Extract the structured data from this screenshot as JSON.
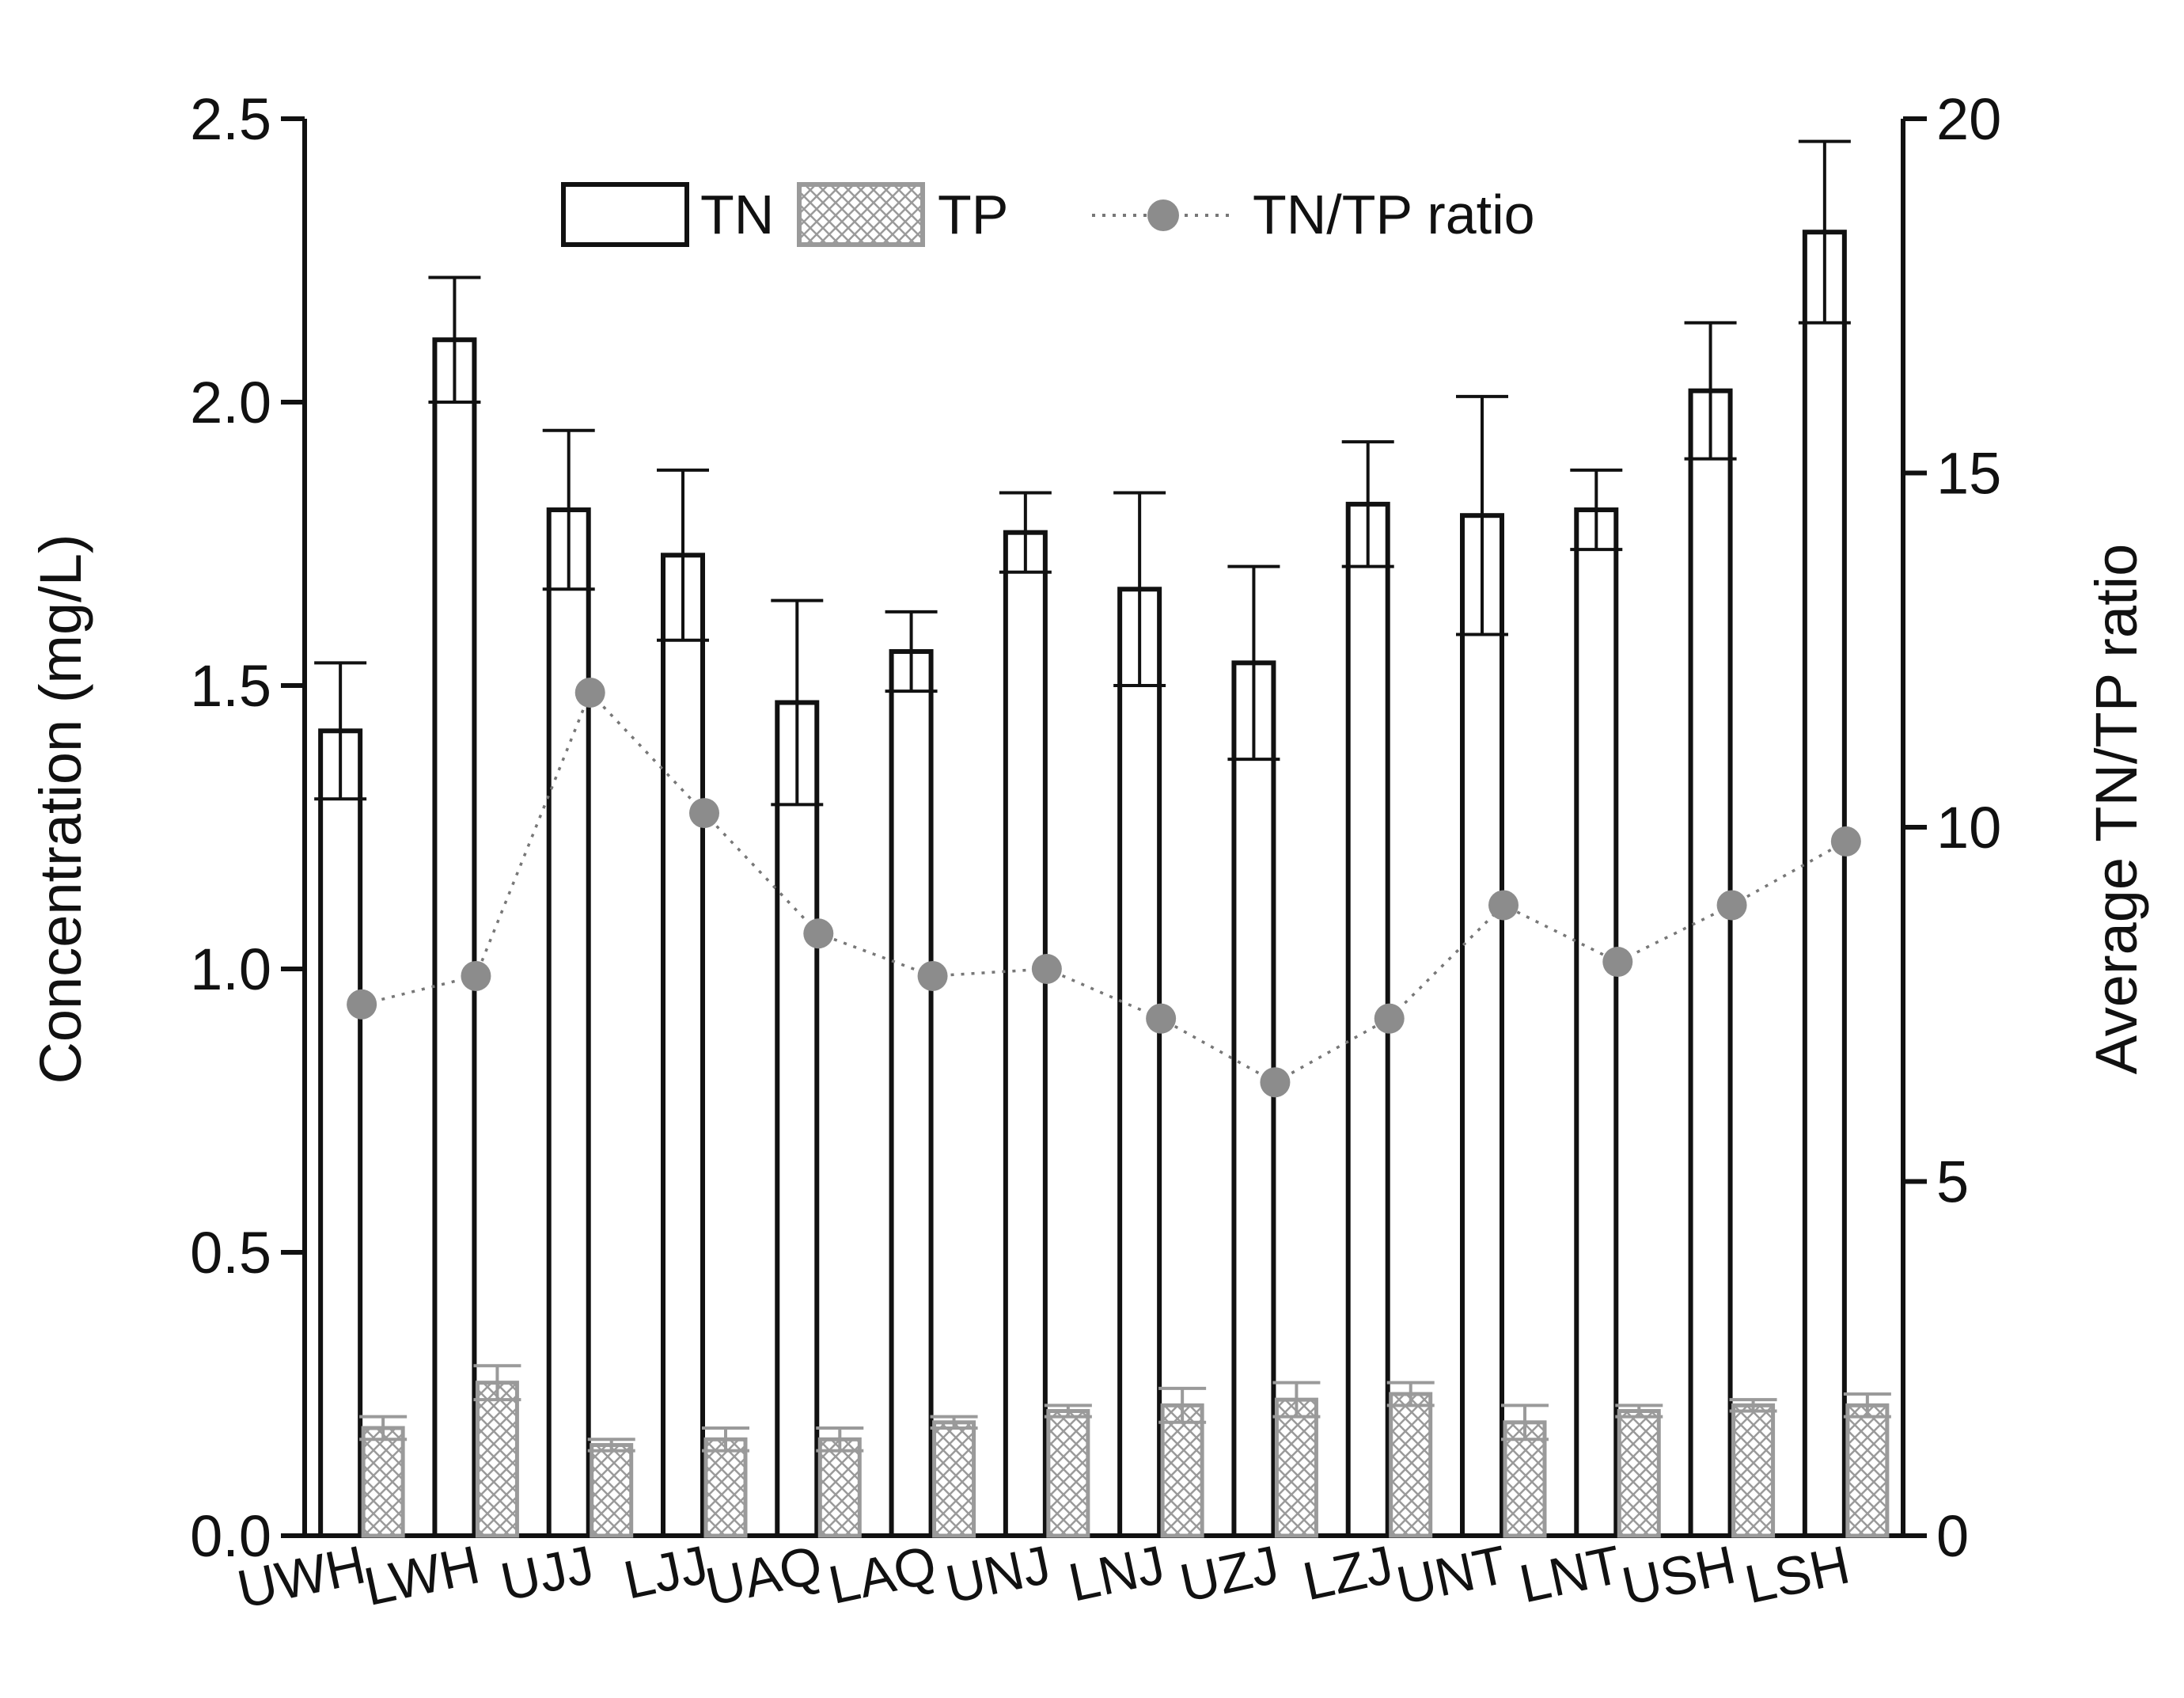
{
  "chart_data": {
    "type": "bar",
    "ylabel": "Concentration (mg/L)",
    "y2label": "Average TN/TP ratio",
    "ylim": [
      0,
      2.5
    ],
    "y2lim": [
      0,
      20
    ],
    "yticks": [
      "0.0",
      "0.5",
      "1.0",
      "1.5",
      "2.0",
      "2.5"
    ],
    "y2ticks": [
      "0",
      "5",
      "10",
      "15",
      "20"
    ],
    "categories": [
      "UWH",
      "LWH",
      "UJJ",
      "LJJ",
      "UAQ",
      "LAQ",
      "UNJ",
      "LNJ",
      "UZJ",
      "LZJ",
      "UNT",
      "LNT",
      "USH",
      "LSH"
    ],
    "legend_position": "top",
    "legend": {
      "tn": "TN",
      "tp": "TP",
      "ratio": "TN/TP ratio"
    },
    "grid": false,
    "series": [
      {
        "name": "TN",
        "axis": "left",
        "style": "open",
        "values": [
          1.42,
          2.11,
          1.81,
          1.73,
          1.47,
          1.56,
          1.77,
          1.67,
          1.54,
          1.82,
          1.8,
          1.81,
          2.02,
          2.3
        ],
        "errors": [
          0.12,
          0.11,
          0.14,
          0.15,
          0.18,
          0.07,
          0.07,
          0.17,
          0.17,
          0.11,
          0.21,
          0.07,
          0.12,
          0.16
        ]
      },
      {
        "name": "TP",
        "axis": "left",
        "style": "crosshatch",
        "values": [
          0.19,
          0.27,
          0.16,
          0.17,
          0.17,
          0.2,
          0.22,
          0.23,
          0.24,
          0.25,
          0.2,
          0.22,
          0.23,
          0.23
        ],
        "errors": [
          0.02,
          0.03,
          0.01,
          0.02,
          0.02,
          0.01,
          0.01,
          0.03,
          0.03,
          0.02,
          0.03,
          0.01,
          0.01,
          0.02
        ]
      },
      {
        "name": "TN/TP ratio",
        "axis": "right",
        "style": "dotted-line-markers",
        "values": [
          7.5,
          7.9,
          11.9,
          10.2,
          8.5,
          7.9,
          8.0,
          7.3,
          6.4,
          7.3,
          8.9,
          8.1,
          8.9,
          9.8
        ]
      }
    ],
    "colors": {
      "axis": "#111111",
      "tn_stroke": "#111111",
      "tp_stroke": "#9a9a9a",
      "ratio_marker": "#8c8c8c",
      "ratio_line": "#777777"
    }
  }
}
